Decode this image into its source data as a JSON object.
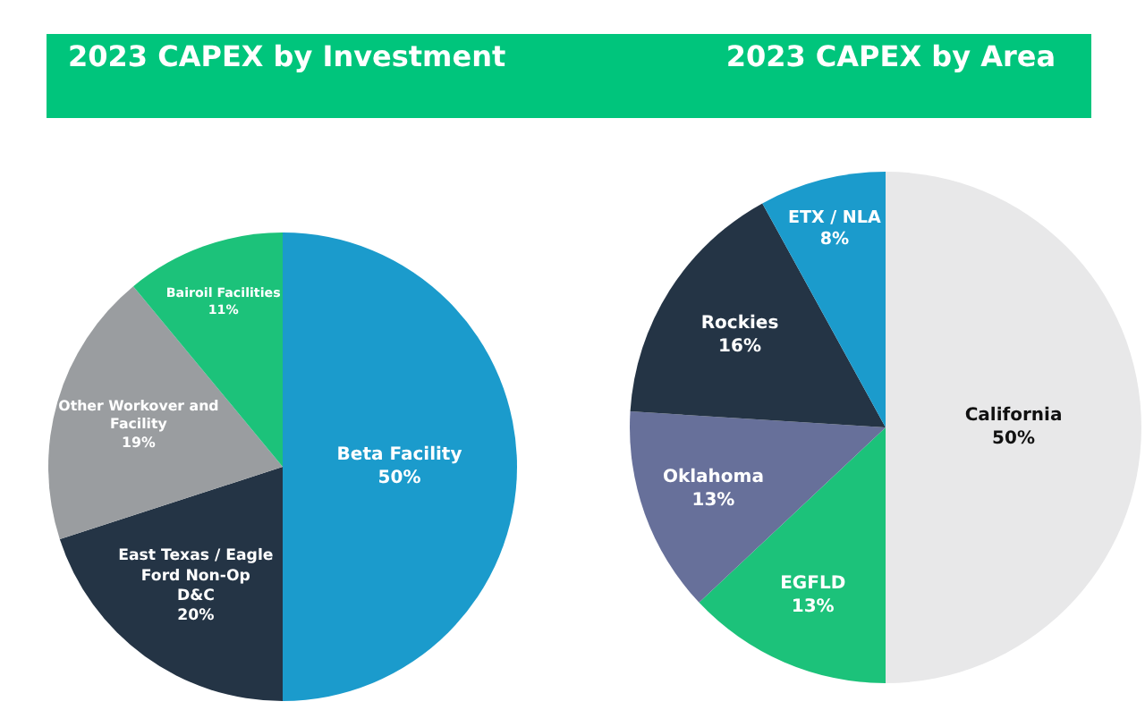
{
  "chart_data": [
    {
      "type": "pie",
      "title": "2023 CAPEX by Investment",
      "categories": [
        "Beta Facility",
        "East Texas / Eagle Ford Non-Op D&C",
        "Other Workover and Facility",
        "Bairoil Facilities"
      ],
      "values": [
        50,
        20,
        19,
        11
      ],
      "colors": [
        "#1b9bcc",
        "#243445",
        "#9a9da0",
        "#1cc27a"
      ],
      "value_labels": [
        "50%",
        "20%",
        "19%",
        "11%"
      ],
      "legend": false
    },
    {
      "type": "pie",
      "title": "2023 CAPEX by Area",
      "categories": [
        "California",
        "EGFLD",
        "Oklahoma",
        "Rockies",
        "ETX / NLA"
      ],
      "values": [
        50,
        13,
        13,
        16,
        8
      ],
      "colors": [
        "#e8e8e9",
        "#1cc27a",
        "#67709a",
        "#243445",
        "#1b9bcc"
      ],
      "value_labels": [
        "50%",
        "13%",
        "13%",
        "16%",
        "8%"
      ],
      "legend": false
    }
  ]
}
